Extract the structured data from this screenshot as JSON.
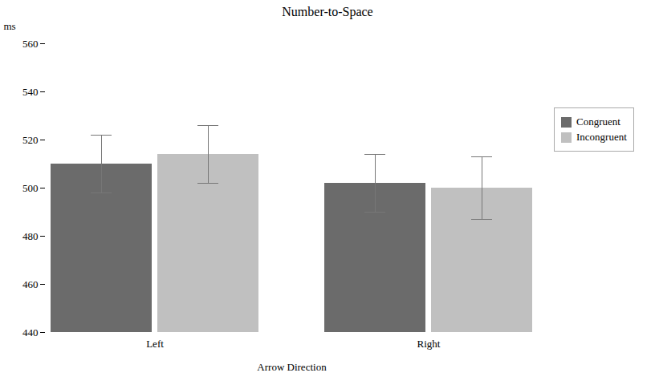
{
  "chart_data": {
    "type": "bar",
    "title": "Number-to-Space",
    "xlabel": "Arrow Direction",
    "ylabel": "ms",
    "categories": [
      "Left",
      "Right"
    ],
    "series": [
      {
        "name": "Congruent",
        "color": "#6b6b6b",
        "values": [
          510,
          502
        ],
        "errors": [
          12,
          12
        ]
      },
      {
        "name": "Incongruent",
        "color": "#c0c0c0",
        "values": [
          514,
          500
        ],
        "errors": [
          12,
          13
        ]
      }
    ],
    "ylim": [
      440,
      560
    ],
    "yticks": [
      440,
      460,
      480,
      500,
      520,
      540,
      560
    ],
    "grid": false,
    "legend": "right"
  }
}
